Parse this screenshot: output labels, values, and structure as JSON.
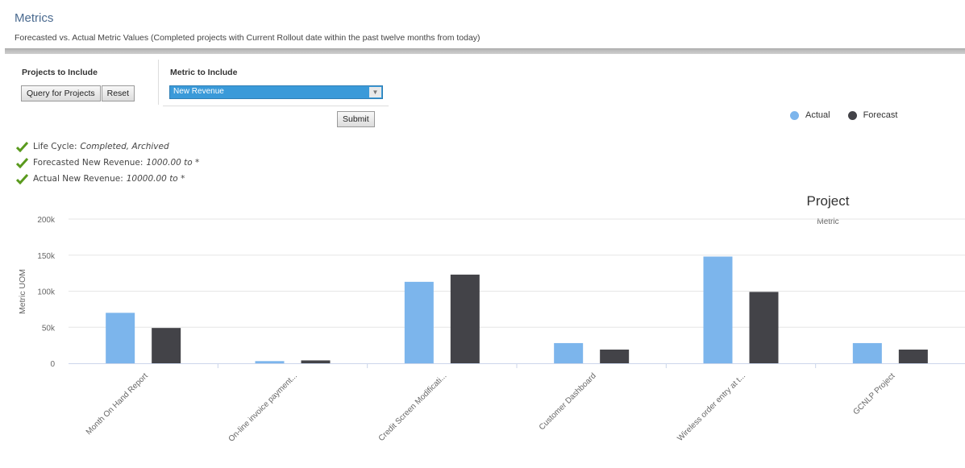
{
  "page": {
    "title": "Metrics",
    "subtitle": "Forecasted vs. Actual Metric Values (Completed projects with Current Rollout date within the past twelve months from today)"
  },
  "controls": {
    "projects_heading": "Projects to Include",
    "query_button": "Query for Projects",
    "reset_button": "Reset",
    "metric_heading": "Metric to Include",
    "metric_selected": "New Revenue",
    "submit_button": "Submit"
  },
  "filters": [
    {
      "label": "Life Cycle:",
      "value": "Completed, Archived",
      "icon": "checkmark-icon"
    },
    {
      "label": "Forecasted New Revenue:",
      "value": "1000.00 to *",
      "icon": "checkmark-icon"
    },
    {
      "label": "Actual New Revenue:",
      "value": "10000.00 to *",
      "icon": "checkmark-icon"
    }
  ],
  "legend": [
    {
      "name": "Actual",
      "color": "#7cb5ec"
    },
    {
      "name": "Forecast",
      "color": "#434348"
    }
  ],
  "chart_data": {
    "type": "bar",
    "title": "Project",
    "subtitle": "Metric",
    "ylabel": "Metric UOM",
    "xlabel": "",
    "ylim": [
      0,
      200000
    ],
    "yticks": [
      {
        "value": 0,
        "label": "0"
      },
      {
        "value": 50000,
        "label": "50k"
      },
      {
        "value": 100000,
        "label": "100k"
      },
      {
        "value": 150000,
        "label": "150k"
      },
      {
        "value": 200000,
        "label": "200k"
      }
    ],
    "categories": [
      "Month On Hand Report",
      "On-line invoice payment...",
      "Credit Screen Modificati...",
      "Customer Dashboard",
      "Wireless order entry at t...",
      "GCNLP Project"
    ],
    "series": [
      {
        "name": "Actual",
        "color": "#7cb5ec",
        "values": [
          70000,
          3000,
          113000,
          28000,
          148000,
          28000
        ]
      },
      {
        "name": "Forecast",
        "color": "#434348",
        "values": [
          49000,
          4000,
          123000,
          19000,
          99000,
          19000
        ]
      }
    ],
    "grid": true,
    "legend_position": "top-right"
  }
}
